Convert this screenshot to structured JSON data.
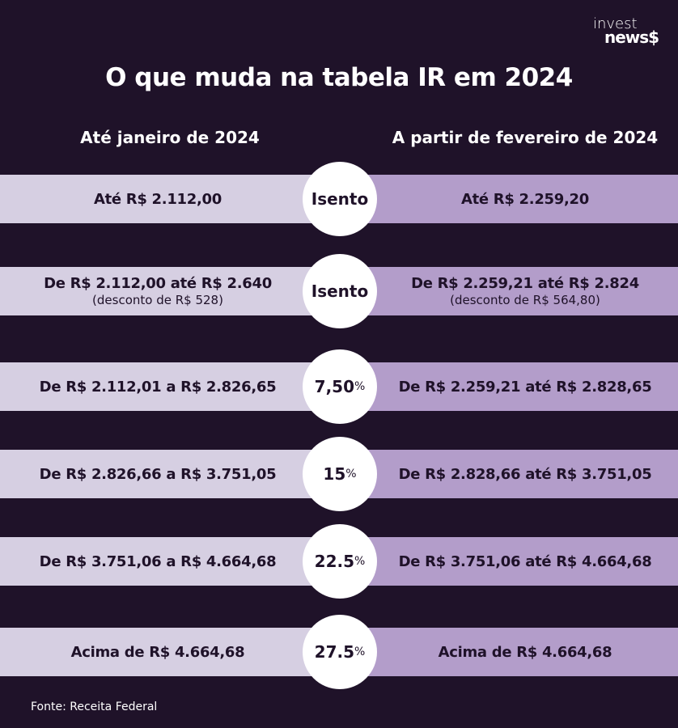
{
  "logo": {
    "line1": "invest",
    "line2": "news$"
  },
  "title": "O que muda na tabela IR em 2024",
  "columns": {
    "left": "Até janeiro de 2024",
    "right": "A partir de fevereiro de 2024"
  },
  "rows": [
    {
      "left": "Até R$ 2.112,00",
      "left_sub": null,
      "rate": "Isento",
      "pct": null,
      "right": "Até R$ 2.259,20",
      "right_sub": null
    },
    {
      "left": "De R$ 2.112,00 até R$ 2.640",
      "left_sub": "(desconto de R$ 528)",
      "rate": "Isento",
      "pct": null,
      "right": "De R$ 2.259,21 até R$ 2.824",
      "right_sub": "(desconto de R$ 564,80)"
    },
    {
      "left": "De R$ 2.112,01 a R$ 2.826,65",
      "left_sub": null,
      "rate": "7,50",
      "pct": "%",
      "right": "De R$ 2.259,21 até R$ 2.828,65",
      "right_sub": null
    },
    {
      "left": "De R$ 2.826,66 a R$ 3.751,05",
      "left_sub": null,
      "rate": "15",
      "pct": "%",
      "right": "De R$ 2.828,66 até R$ 3.751,05",
      "right_sub": null
    },
    {
      "left": "De R$ 3.751,06 a R$ 4.664,68",
      "left_sub": null,
      "rate": "22.5",
      "pct": "%",
      "right": "De R$ 3.751,06 até R$ 4.664,68",
      "right_sub": null
    },
    {
      "left": "Acima de R$ 4.664,68",
      "left_sub": null,
      "rate": "27.5",
      "pct": "%",
      "right": "Acima de R$ 4.664,68",
      "right_sub": null
    }
  ],
  "source": "Fonte:  Receita Federal",
  "colors": {
    "background": "#1f1229",
    "left_bar": "#d6cfe2",
    "right_bar": "#b39dca"
  }
}
